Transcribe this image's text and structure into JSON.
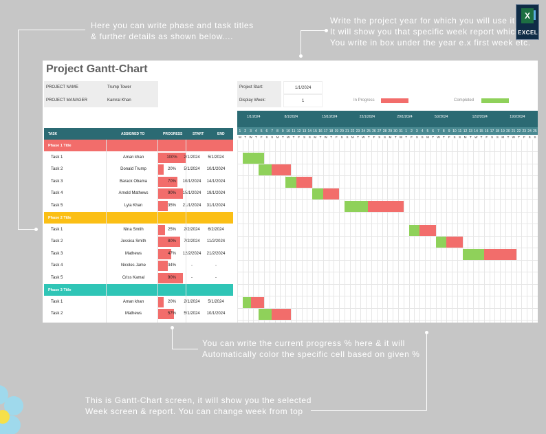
{
  "annotations": {
    "top_left": [
      "Here you can write phase and task titles",
      "& further details as shown below...."
    ],
    "top_right": [
      "Write the project year for which you will use it",
      "It will show you that specific week report which",
      "You write in box under the year e.x first week etc."
    ],
    "bottom_middle": [
      "You can write the current progress % here & it will",
      "Automatically color the specific cell based on given %"
    ],
    "bottom_left": [
      "This is Gantt-Chart screen, it will show you the selected",
      "Week screen & report. You can change week from top"
    ]
  },
  "logo": {
    "glyph": "X",
    "label": "EXCEL"
  },
  "sheet": {
    "title": "Project Gantt-Chart",
    "project_name_label": "PROJECT NAME",
    "project_name": "Trump Tower",
    "project_manager_label": "PROJECT MANAGER",
    "project_manager": "Kamral Khan",
    "project_start_label": "Project Start:",
    "project_start": "1/1/2024",
    "display_week_label": "Display Week:",
    "display_week": "1",
    "legend_in_progress": "In Progress",
    "legend_completed": "Completed"
  },
  "colors": {
    "header_teal": "#2b6a73",
    "in_progress": "#f26d6b",
    "completed": "#8fd15a",
    "phase1": "#f26d6b",
    "phase2": "#fbbf15",
    "phase3": "#2fc5b6"
  },
  "columns": {
    "task": "TASK",
    "assigned": "ASSIGNED TO",
    "progress": "PROGRESS",
    "start": "START",
    "end": "END"
  },
  "week_dates": [
    "1/1/2024",
    "8/1/2024",
    "15/1/2024",
    "22/1/2024",
    "29/1/2024",
    "5/2/2024",
    "12/2/2024",
    "19/2/2024"
  ],
  "day_numbers": [
    1,
    2,
    3,
    4,
    5,
    6,
    7,
    8,
    9,
    10,
    11,
    12,
    13,
    14,
    15,
    16,
    17,
    18,
    19,
    20,
    21,
    22,
    23,
    24,
    25,
    26,
    27,
    28,
    29,
    30,
    31,
    1,
    2,
    3,
    4,
    5,
    6,
    7,
    8,
    9,
    10,
    11,
    12,
    13,
    14,
    15,
    16,
    17,
    18,
    19,
    20,
    21,
    22,
    23,
    24,
    25
  ],
  "day_letters": [
    "M",
    "T",
    "W",
    "T",
    "F",
    "S",
    "S"
  ],
  "phases": [
    {
      "title": "Phase 1 Title",
      "tasks": [
        {
          "task": "Task 1",
          "assigned": "Aman khan",
          "progress": "100%",
          "start": "2/1/2024",
          "end": "5/1/2024"
        },
        {
          "task": "Task 2",
          "assigned": "Donald Trump",
          "progress": "20%",
          "start": "5/1/2024",
          "end": "10/1/2024"
        },
        {
          "task": "Task 3",
          "assigned": "Barack Obama",
          "progress": "70%",
          "start": "10/1/2024",
          "end": "14/1/2024"
        },
        {
          "task": "Task 4",
          "assigned": "Arnold Mathews",
          "progress": "90%",
          "start": "15/1/2024",
          "end": "19/1/2024"
        },
        {
          "task": "Task 5",
          "assigned": "Lyla Khan",
          "progress": "35%",
          "start": "21/1/2024",
          "end": "31/1/2024"
        }
      ]
    },
    {
      "title": "Phase 2 Title",
      "tasks": [
        {
          "task": "Task 1",
          "assigned": "Nina Smtih",
          "progress": "25%",
          "start": "2/2/2024",
          "end": "6/2/2024"
        },
        {
          "task": "Task 2",
          "assigned": "Jessica Smith",
          "progress": "80%",
          "start": "7/2/2024",
          "end": "11/2/2024"
        },
        {
          "task": "Task 3",
          "assigned": "Mathews",
          "progress": "47%",
          "start": "12/2/2024",
          "end": "21/2/2024"
        },
        {
          "task": "Task 4",
          "assigned": "Nicoles Jame",
          "progress": "34%",
          "start": "-",
          "end": "-"
        },
        {
          "task": "Task 5",
          "assigned": "Criss Kamal",
          "progress": "90%",
          "start": "-",
          "end": "-"
        }
      ]
    },
    {
      "title": "Phase 3 Title",
      "tasks": [
        {
          "task": "Task 1",
          "assigned": "Aman khan",
          "progress": "20%",
          "start": "2/1/2024",
          "end": "5/1/2024"
        },
        {
          "task": "Task 2",
          "assigned": "Mathews",
          "progress": "57%",
          "start": "5/1/2024",
          "end": "10/1/2024"
        }
      ]
    }
  ]
}
